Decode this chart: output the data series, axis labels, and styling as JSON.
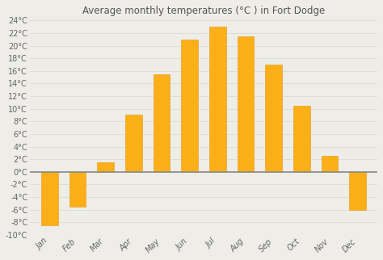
{
  "title": "Average monthly temperatures (°C ) in Fort Dodge",
  "months": [
    "Jan",
    "Feb",
    "Mar",
    "Apr",
    "May",
    "Jun",
    "Jul",
    "Aug",
    "Sep",
    "Oct",
    "Nov",
    "Dec"
  ],
  "values": [
    -8.5,
    -5.5,
    1.5,
    9.0,
    15.5,
    21.0,
    23.0,
    21.5,
    17.0,
    10.5,
    2.5,
    -6.0
  ],
  "bar_color": "#FDAF17",
  "bar_edge_color": "#E09A10",
  "background_color": "#eeede8",
  "plot_bg_color": "#eeede8",
  "ylim": [
    -10,
    24
  ],
  "yticks": [
    -10,
    -8,
    -6,
    -4,
    -2,
    0,
    2,
    4,
    6,
    8,
    10,
    12,
    14,
    16,
    18,
    20,
    22,
    24
  ],
  "zero_line_color": "#888888",
  "grid_color": "#d8d8d3",
  "title_fontsize": 8.5,
  "tick_fontsize": 7.0
}
